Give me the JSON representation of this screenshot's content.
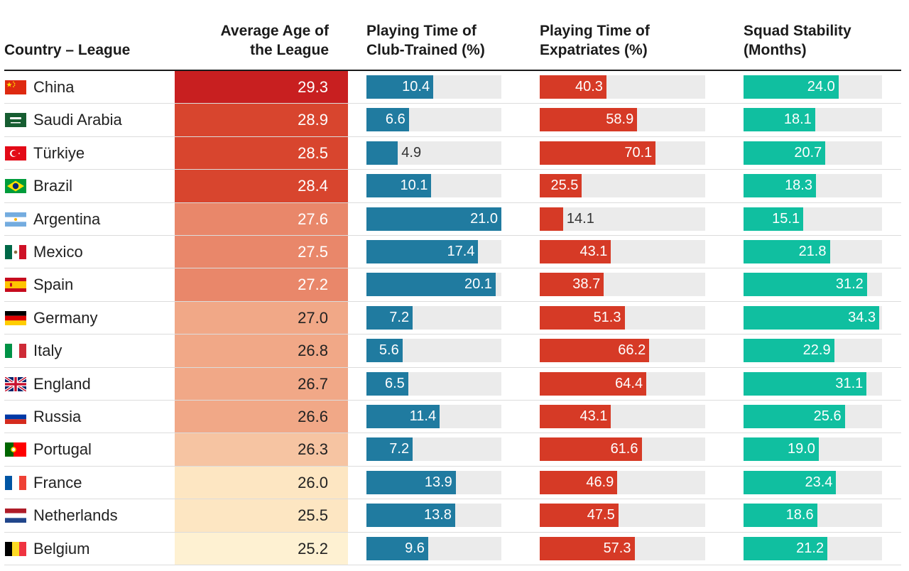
{
  "chart_data": {
    "type": "table",
    "columns": [
      "Country – League",
      "Average Age of the League",
      "Playing Time of Club-Trained (%)",
      "Playing Time of Expatriates (%)",
      "Squad Stability (Months)"
    ],
    "header_lines": {
      "country": [
        "Country – League"
      ],
      "age": [
        "Average Age of",
        "the League"
      ],
      "club": [
        "Playing Time of",
        "Club-Trained (%)"
      ],
      "exp": [
        "Playing Time of",
        "Expatriates (%)"
      ],
      "stab": [
        "Squad Stability",
        "(Months)"
      ]
    },
    "bar_scales": {
      "club": [
        0,
        21.0
      ],
      "exp": [
        0,
        100
      ],
      "stab": [
        0,
        35
      ]
    },
    "colors": {
      "club_bar": "#207ba0",
      "exp_bar": "#d63a26",
      "stab_bar": "#10bfa0",
      "track": "#ebebeb",
      "age_heat": [
        "#c81f20",
        "#d8452e",
        "#e9876a",
        "#f1a887",
        "#f6c4a2",
        "#fde6c2",
        "#fef1d2"
      ]
    },
    "rows": [
      {
        "country": "China",
        "flag": "china-flag-icon",
        "age": 29.3,
        "club": 10.4,
        "exp": 40.3,
        "stab": 24.0
      },
      {
        "country": "Saudi Arabia",
        "flag": "saudi-arabia-flag-icon",
        "age": 28.9,
        "club": 6.6,
        "exp": 58.9,
        "stab": 18.1
      },
      {
        "country": "Türkiye",
        "flag": "turkiye-flag-icon",
        "age": 28.5,
        "club": 4.9,
        "exp": 70.1,
        "stab": 20.7
      },
      {
        "country": "Brazil",
        "flag": "brazil-flag-icon",
        "age": 28.4,
        "club": 10.1,
        "exp": 25.5,
        "stab": 18.3
      },
      {
        "country": "Argentina",
        "flag": "argentina-flag-icon",
        "age": 27.6,
        "club": 21.0,
        "exp": 14.1,
        "stab": 15.1
      },
      {
        "country": "Mexico",
        "flag": "mexico-flag-icon",
        "age": 27.5,
        "club": 17.4,
        "exp": 43.1,
        "stab": 21.8
      },
      {
        "country": "Spain",
        "flag": "spain-flag-icon",
        "age": 27.2,
        "club": 20.1,
        "exp": 38.7,
        "stab": 31.2
      },
      {
        "country": "Germany",
        "flag": "germany-flag-icon",
        "age": 27.0,
        "club": 7.2,
        "exp": 51.3,
        "stab": 34.3
      },
      {
        "country": "Italy",
        "flag": "italy-flag-icon",
        "age": 26.8,
        "club": 5.6,
        "exp": 66.2,
        "stab": 22.9
      },
      {
        "country": "England",
        "flag": "england-flag-icon",
        "age": 26.7,
        "club": 6.5,
        "exp": 64.4,
        "stab": 31.1
      },
      {
        "country": "Russia",
        "flag": "russia-flag-icon",
        "age": 26.6,
        "club": 11.4,
        "exp": 43.1,
        "stab": 25.6
      },
      {
        "country": "Portugal",
        "flag": "portugal-flag-icon",
        "age": 26.3,
        "club": 7.2,
        "exp": 61.6,
        "stab": 19.0
      },
      {
        "country": "France",
        "flag": "france-flag-icon",
        "age": 26.0,
        "club": 13.9,
        "exp": 46.9,
        "stab": 23.4
      },
      {
        "country": "Netherlands",
        "flag": "netherlands-flag-icon",
        "age": 25.5,
        "club": 13.8,
        "exp": 47.5,
        "stab": 18.6
      },
      {
        "country": "Belgium",
        "flag": "belgium-flag-icon",
        "age": 25.2,
        "club": 9.6,
        "exp": 57.3,
        "stab": 21.2
      }
    ]
  }
}
